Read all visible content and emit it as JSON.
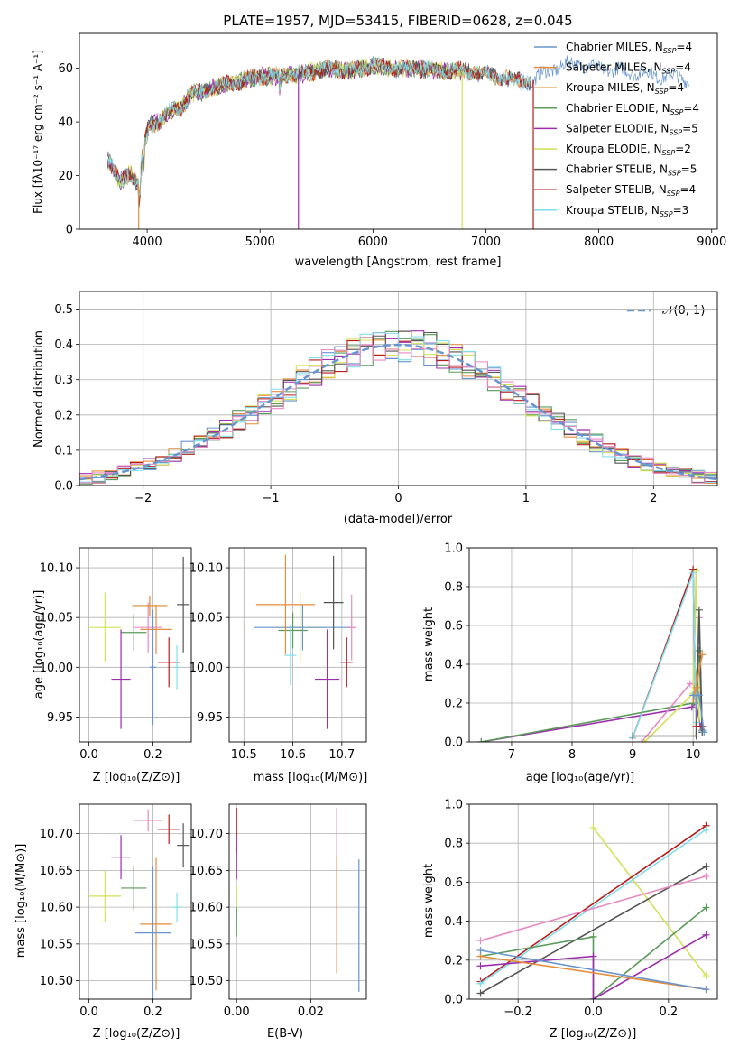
{
  "chart_data": [
    {
      "type": "line",
      "title": "PLATE=1957, MJD=53415, FIBERID=0628, z=0.045",
      "xlabel": "wavelength [Angstrom, rest frame]",
      "ylabel": "Flux [fλ10⁻¹⁷ erg cm⁻² s⁻¹ A⁻¹]",
      "xlim": [
        3400,
        9050
      ],
      "ylim": [
        0,
        73
      ],
      "xticks": [
        4000,
        5000,
        6000,
        7000,
        8000,
        9000
      ],
      "yticks": [
        0,
        20,
        40,
        60
      ],
      "legend": "upper-right",
      "continuum": {
        "x": [
          3650,
          3700,
          3760,
          3850,
          3930,
          3970,
          4020,
          4100,
          4200,
          4300,
          4400,
          4500,
          4600,
          4800,
          5000,
          5200,
          5400,
          5600,
          5800,
          6000,
          6200,
          6400,
          6600,
          6800,
          7000,
          7200,
          7400,
          7600,
          7800,
          8000,
          8200,
          8400,
          8600,
          8800
        ],
        "y": [
          26,
          22,
          18,
          21,
          16,
          32,
          39,
          40,
          44,
          45,
          51,
          51,
          53,
          55,
          57,
          57,
          58,
          60,
          59,
          61,
          60,
          60,
          59,
          59,
          58,
          56,
          55,
          60,
          62,
          60,
          59,
          58,
          57,
          56
        ]
      },
      "dropouts": [
        {
          "series": "Salpeter MILES",
          "x": 3925
        },
        {
          "series": "Salpeter ELODIE",
          "x": 5340
        },
        {
          "series": "Kroupa ELODIE",
          "x": 6790
        },
        {
          "series": "Salpeter STELIB",
          "x": 7420
        }
      ],
      "series": [
        {
          "label": "Chabrier MILES, N",
          "sub": "SSP",
          "n": "=4",
          "color": "#6895ce",
          "xmax": 8800
        },
        {
          "label": "Salpeter MILES, N",
          "sub": "SSP",
          "n": "=4",
          "color": "#e68c3a",
          "xmax": 7400
        },
        {
          "label": "Kroupa MILES, N",
          "sub": "SSP",
          "n": "=4",
          "color": "#d98a2b",
          "xmax": 7400
        },
        {
          "label": "Chabrier ELODIE, N",
          "sub": "SSP",
          "n": "=4",
          "color": "#5a9a5a",
          "xmax": 6800
        },
        {
          "label": "Salpeter ELODIE, N",
          "sub": "SSP",
          "n": "=5",
          "color": "#9d2fae",
          "xmax": 6800
        },
        {
          "label": "Kroupa ELODIE, N",
          "sub": "SSP",
          "n": "=2",
          "color": "#d4e157",
          "xmax": 6800
        },
        {
          "label": "Chabrier STELIB, N",
          "sub": "SSP",
          "n": "=5",
          "color": "#555555",
          "xmax": 7400
        },
        {
          "label": "Salpeter STELIB, N",
          "sub": "SSP",
          "n": "=4",
          "color": "#b71c1c",
          "xmax": 7400
        },
        {
          "label": "Kroupa STELIB, N",
          "sub": "SSP",
          "n": "=3",
          "color": "#80deea",
          "xmax": 7400
        }
      ]
    },
    {
      "type": "histogram",
      "xlabel": "(data-model)/error",
      "ylabel": "Normed distribution",
      "xlim": [
        -2.5,
        2.5
      ],
      "ylim": [
        0,
        0.55
      ],
      "xticks": [
        -2,
        -1,
        0,
        1,
        2
      ],
      "yticks": [
        0.0,
        0.1,
        0.2,
        0.3,
        0.4,
        0.5
      ],
      "grid": true,
      "legend_label": "𝒩(0, 1)",
      "legend": "upper-right",
      "bin_width": 0.1,
      "bin_start": -2.5,
      "colors": [
        "#6895ce",
        "#e68c3a",
        "#5a9a5a",
        "#9d2fae",
        "#d4e157",
        "#555555",
        "#b71c1c",
        "#80deea",
        "#e78ac3"
      ]
    },
    {
      "type": "scatter",
      "name": "age-vs-Z",
      "xlabel": "Z [log₁₀(Z/Z⊙)]",
      "ylabel": "age  [log₁₀(age/yr)]",
      "xlim": [
        -0.03,
        0.32
      ],
      "ylim": [
        9.925,
        10.12
      ],
      "xticks": [
        0.0,
        0.2
      ],
      "yticks": [
        9.95,
        10.0,
        10.05,
        10.1
      ],
      "points": [
        {
          "x": 0.05,
          "y": 10.04,
          "xerr": 0.05,
          "yerr": 0.035,
          "color": "#d4e157"
        },
        {
          "x": 0.14,
          "y": 10.035,
          "xerr": 0.04,
          "yerr": 0.018,
          "color": "#5a9a5a"
        },
        {
          "x": 0.185,
          "y": 10.04,
          "xerr": 0.045,
          "yerr": 0.025,
          "color": "#e78ac3"
        },
        {
          "x": 0.21,
          "y": 10.038,
          "xerr": 0.05,
          "yerr": 0.025,
          "color": "#e68c3a"
        },
        {
          "x": 0.19,
          "y": 10.062,
          "xerr": 0.055,
          "yerr": 0.01,
          "color": "#d98a2b"
        },
        {
          "x": 0.1,
          "y": 9.988,
          "xerr": 0.03,
          "yerr": 0.05,
          "color": "#9d2fae"
        },
        {
          "x": 0.25,
          "y": 10.005,
          "xerr": 0.035,
          "yerr": 0.025,
          "color": "#b71c1c"
        },
        {
          "x": 0.295,
          "y": 10.063,
          "xerr": 0.02,
          "yerr": 0.048,
          "color": "#555555"
        },
        {
          "x": 0.2,
          "y": 10.0,
          "xerr": 0.01,
          "yerr": 0.058,
          "color": "#6895ce"
        },
        {
          "x": 0.275,
          "y": 10.0,
          "xerr": 0.008,
          "yerr": 0.022,
          "color": "#80deea"
        }
      ]
    },
    {
      "type": "scatter",
      "name": "age-vs-mass",
      "xlabel": "mass [log₁₀(M/M⊙)]",
      "ylabel": "",
      "xlim": [
        10.47,
        10.75
      ],
      "ylim": [
        9.925,
        10.12
      ],
      "xticks": [
        10.5,
        10.6,
        10.7
      ],
      "yticks": [
        9.95,
        10.0,
        10.05,
        10.1
      ],
      "points": [
        {
          "x": 10.615,
          "y": 10.04,
          "xerr": 0.05,
          "yerr": 0.035,
          "color": "#d4e157"
        },
        {
          "x": 10.6,
          "y": 10.037,
          "xerr": 0.03,
          "yerr": 0.018,
          "color": "#5a9a5a"
        },
        {
          "x": 10.62,
          "y": 10.04,
          "xerr": 0.1,
          "yerr": 0.023,
          "color": "#6895ce"
        },
        {
          "x": 10.585,
          "y": 10.063,
          "xerr": 0.06,
          "yerr": 0.05,
          "color": "#e68c3a"
        },
        {
          "x": 10.595,
          "y": 10.012,
          "xerr": 0.012,
          "yerr": 0.03,
          "color": "#80deea"
        },
        {
          "x": 10.67,
          "y": 9.988,
          "xerr": 0.025,
          "yerr": 0.05,
          "color": "#9d2fae"
        },
        {
          "x": 10.683,
          "y": 10.065,
          "xerr": 0.02,
          "yerr": 0.047,
          "color": "#555555"
        },
        {
          "x": 10.71,
          "y": 10.005,
          "xerr": 0.012,
          "yerr": 0.025,
          "color": "#b71c1c"
        },
        {
          "x": 10.72,
          "y": 10.04,
          "xerr": 0.008,
          "yerr": 0.033,
          "color": "#e78ac3"
        }
      ]
    },
    {
      "type": "line",
      "name": "mass-weight-vs-age",
      "xlabel": "age  [log₁₀(age/yr)]",
      "ylabel": "mass weight",
      "xlim": [
        6.3,
        10.4
      ],
      "ylim": [
        0,
        1.0
      ],
      "xticks": [
        7,
        8,
        9,
        10
      ],
      "yticks": [
        0.0,
        0.2,
        0.4,
        0.6,
        0.8,
        1.0
      ],
      "series": [
        {
          "color": "#9d2fae",
          "x": [
            6.5,
            9.98,
            10.05,
            10.12
          ],
          "y": [
            0.0,
            0.18,
            0.2,
            0.08
          ]
        },
        {
          "color": "#5a9a5a",
          "x": [
            6.5,
            10.0,
            10.1,
            10.15
          ],
          "y": [
            0.0,
            0.2,
            0.47,
            0.06
          ]
        },
        {
          "color": "#e78ac3",
          "x": [
            9.15,
            9.95,
            10.0,
            10.05,
            10.1
          ],
          "y": [
            0.0,
            0.3,
            0.3,
            0.22,
            0.64
          ]
        },
        {
          "color": "#d4e157",
          "x": [
            9.2,
            10.0,
            10.05,
            10.1
          ],
          "y": [
            0.0,
            0.25,
            0.88,
            0.12
          ]
        },
        {
          "color": "#b71c1c",
          "x": [
            9.0,
            10.0,
            10.05,
            10.15
          ],
          "y": [
            0.02,
            0.89,
            0.08,
            0.08
          ]
        },
        {
          "color": "#80deea",
          "x": [
            9.0,
            10.0,
            10.05
          ],
          "y": [
            0.02,
            0.87,
            0.1
          ]
        },
        {
          "color": "#555555",
          "x": [
            9.0,
            10.05,
            10.1,
            10.15
          ],
          "y": [
            0.03,
            0.03,
            0.68,
            0.05
          ]
        },
        {
          "color": "#e68c3a",
          "x": [
            10.0,
            10.05,
            10.15
          ],
          "y": [
            0.22,
            0.28,
            0.45
          ]
        },
        {
          "color": "#6895ce",
          "x": [
            10.0,
            10.1,
            10.18
          ],
          "y": [
            0.24,
            0.24,
            0.05
          ]
        }
      ]
    },
    {
      "type": "scatter",
      "name": "mass-vs-Z",
      "xlabel": "Z [log₁₀(Z/Z⊙)]",
      "ylabel": "mass [log₁₀(M/M⊙)]",
      "xlim": [
        -0.03,
        0.32
      ],
      "ylim": [
        10.475,
        10.74
      ],
      "xticks": [
        0.0,
        0.2
      ],
      "yticks": [
        10.5,
        10.55,
        10.6,
        10.65,
        10.7
      ],
      "points": [
        {
          "x": 0.05,
          "y": 10.615,
          "xerr": 0.05,
          "yerr": 0.035,
          "color": "#d4e157"
        },
        {
          "x": 0.14,
          "y": 10.626,
          "xerr": 0.04,
          "yerr": 0.03,
          "color": "#5a9a5a"
        },
        {
          "x": 0.1,
          "y": 10.668,
          "xerr": 0.03,
          "yerr": 0.03,
          "color": "#9d2fae"
        },
        {
          "x": 0.185,
          "y": 10.718,
          "xerr": 0.045,
          "yerr": 0.015,
          "color": "#e78ac3"
        },
        {
          "x": 0.21,
          "y": 10.577,
          "xerr": 0.05,
          "yerr": 0.09,
          "color": "#e68c3a"
        },
        {
          "x": 0.2,
          "y": 10.565,
          "xerr": 0.055,
          "yerr": 0.09,
          "color": "#6895ce"
        },
        {
          "x": 0.25,
          "y": 10.706,
          "xerr": 0.035,
          "yerr": 0.02,
          "color": "#b71c1c"
        },
        {
          "x": 0.295,
          "y": 10.684,
          "xerr": 0.02,
          "yerr": 0.03,
          "color": "#555555"
        },
        {
          "x": 0.275,
          "y": 10.6,
          "xerr": 0.015,
          "yerr": 0.02,
          "color": "#80deea"
        }
      ]
    },
    {
      "type": "scatter",
      "name": "mass-vs-EBV",
      "xlabel": "E(B-V)",
      "ylabel": "",
      "xlim": [
        -0.002,
        0.035
      ],
      "ylim": [
        10.475,
        10.74
      ],
      "xticks": [
        0.0,
        0.02
      ],
      "yticks": [
        10.5,
        10.55,
        10.6,
        10.65,
        10.7
      ],
      "points": [
        {
          "x": 0.0,
          "y": 10.705,
          "xerr": 0,
          "yerr": 0.03,
          "color": "#b71c1c"
        },
        {
          "x": 0.0,
          "y": 10.668,
          "xerr": 0,
          "yerr": 0.03,
          "color": "#9d2fae"
        },
        {
          "x": 0.0,
          "y": 10.6,
          "xerr": 0,
          "yerr": 0.02,
          "color": "#80deea"
        },
        {
          "x": 0.0,
          "y": 10.58,
          "xerr": 0,
          "yerr": 0.02,
          "color": "#5a9a5a"
        },
        {
          "x": 0.0,
          "y": 10.615,
          "xerr": 0,
          "yerr": 0.015,
          "color": "#d4e157"
        },
        {
          "x": 0.027,
          "y": 10.67,
          "xerr": 0,
          "yerr": 0.065,
          "color": "#e78ac3"
        },
        {
          "x": 0.027,
          "y": 10.59,
          "xerr": 0,
          "yerr": 0.08,
          "color": "#e68c3a"
        },
        {
          "x": 0.033,
          "y": 10.575,
          "xerr": 0,
          "yerr": 0.09,
          "color": "#6895ce"
        }
      ]
    },
    {
      "type": "line",
      "name": "mass-weight-vs-Z",
      "xlabel": "Z [log₁₀(Z/Z⊙)]",
      "ylabel": "mass weight",
      "xlim": [
        -0.33,
        0.33
      ],
      "ylim": [
        0,
        1.0
      ],
      "xticks": [
        -0.2,
        0.0,
        0.2
      ],
      "yticks": [
        0.0,
        0.2,
        0.4,
        0.6,
        0.8,
        1.0
      ],
      "series": [
        {
          "color": "#d4e157",
          "x": [
            0.0,
            0.3
          ],
          "y": [
            0.88,
            0.12
          ]
        },
        {
          "color": "#b71c1c",
          "x": [
            -0.3,
            0.3
          ],
          "y": [
            0.09,
            0.89
          ]
        },
        {
          "color": "#80deea",
          "x": [
            -0.3,
            0.3
          ],
          "y": [
            0.08,
            0.87
          ]
        },
        {
          "color": "#555555",
          "x": [
            -0.3,
            0.3
          ],
          "y": [
            0.03,
            0.68
          ]
        },
        {
          "color": "#e78ac3",
          "x": [
            -0.3,
            0.3
          ],
          "y": [
            0.3,
            0.63
          ]
        },
        {
          "color": "#5a9a5a",
          "x": [
            -0.3,
            0.0,
            0.0,
            0.3
          ],
          "y": [
            0.22,
            0.32,
            0.0,
            0.47
          ]
        },
        {
          "color": "#9d2fae",
          "x": [
            -0.3,
            0.0,
            0.0,
            0.3
          ],
          "y": [
            0.17,
            0.22,
            0.0,
            0.33
          ]
        },
        {
          "color": "#e68c3a",
          "x": [
            -0.3,
            0.3
          ],
          "y": [
            0.22,
            0.05
          ]
        },
        {
          "color": "#6895ce",
          "x": [
            -0.3,
            0.3
          ],
          "y": [
            0.25,
            0.05
          ]
        }
      ]
    }
  ]
}
